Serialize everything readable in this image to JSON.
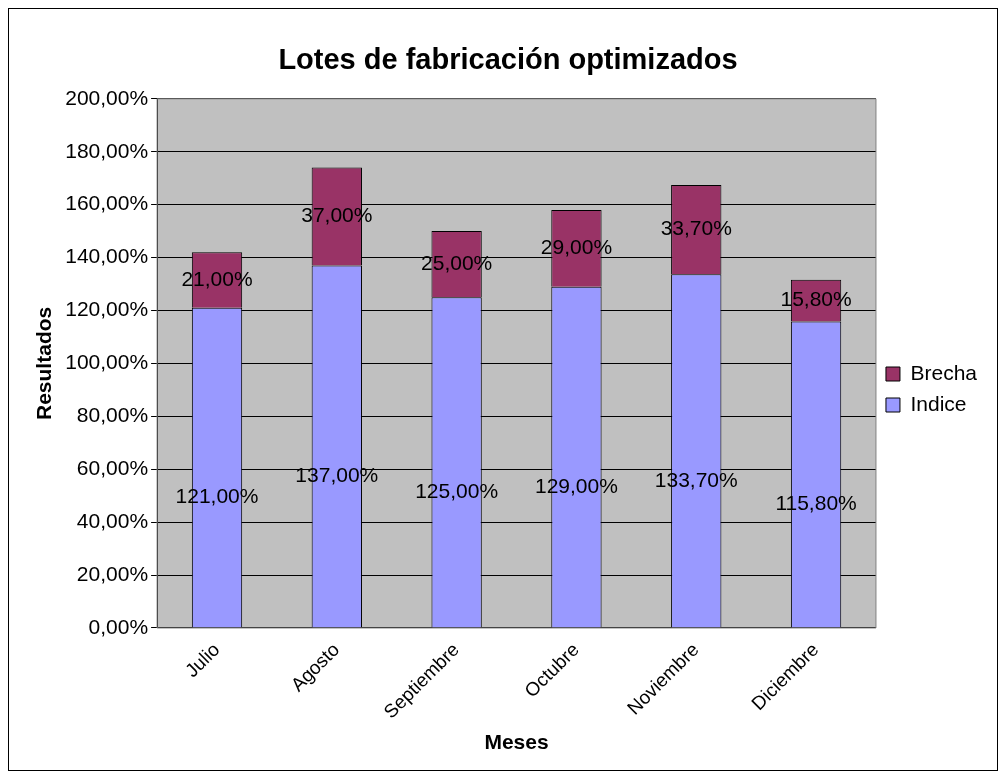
{
  "chart_data": {
    "type": "bar",
    "title": "Lotes de fabricación optimizados",
    "xlabel": "Meses",
    "ylabel": "Resultados",
    "categories": [
      "Julio",
      "Agosto",
      "Septiembre",
      "Octubre",
      "Noviembre",
      "Diciembre"
    ],
    "stacked": true,
    "series": [
      {
        "name": "Indice",
        "color": "#9999ff",
        "values": [
          121,
          137,
          125,
          129,
          133.7,
          115.8
        ],
        "value_labels": [
          "121,00%",
          "137,00%",
          "125,00%",
          "129,00%",
          "133,70%",
          "115,80%"
        ]
      },
      {
        "name": "Brecha",
        "color": "#993366",
        "values": [
          21,
          37,
          25,
          29,
          33.7,
          15.8
        ],
        "value_labels": [
          "21,00%",
          "37,00%",
          "25,00%",
          "29,00%",
          "33,70%",
          "15,80%"
        ]
      }
    ],
    "ylim": [
      0,
      200
    ],
    "yticks": [
      {
        "value": 0,
        "label": "0,00%"
      },
      {
        "value": 20,
        "label": "20,00%"
      },
      {
        "value": 40,
        "label": "40,00%"
      },
      {
        "value": 60,
        "label": "60,00%"
      },
      {
        "value": 80,
        "label": "80,00%"
      },
      {
        "value": 100,
        "label": "100,00%"
      },
      {
        "value": 120,
        "label": "120,00%"
      },
      {
        "value": 140,
        "label": "140,00%"
      },
      {
        "value": 160,
        "label": "160,00%"
      },
      {
        "value": 180,
        "label": "180,00%"
      },
      {
        "value": 200,
        "label": "200,00%"
      }
    ],
    "grid": "y",
    "legend": "right"
  }
}
